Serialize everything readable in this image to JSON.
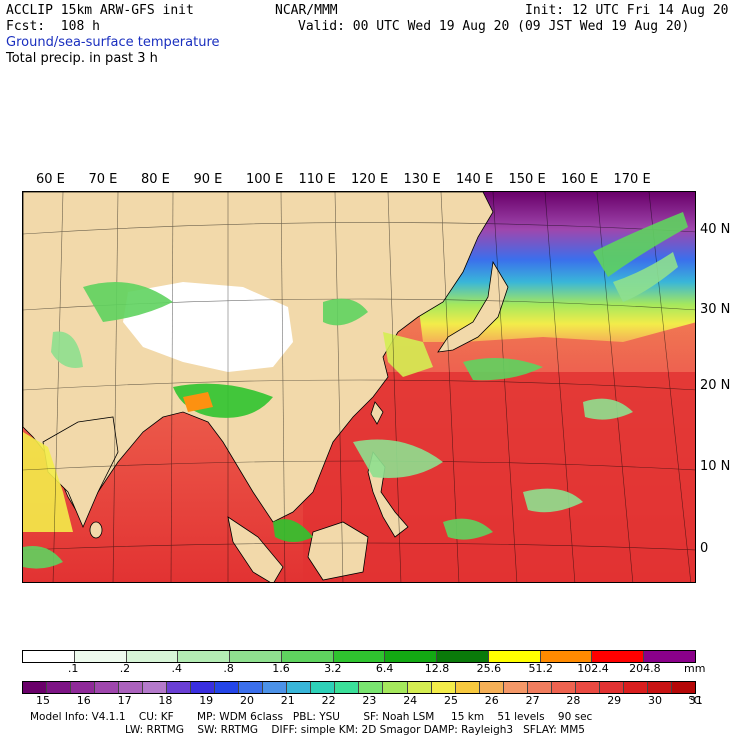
{
  "header": {
    "model_line": "ACCLIP 15km ARW-GFS init",
    "org": "NCAR/MMM",
    "init": "Init: 12 UTC Fri 14 Aug 20",
    "fcst": "Fcst:  108 h",
    "valid": "Valid: 00 UTC Wed 19 Aug 20 (09 JST Wed 19 Aug 20)",
    "field1": "Ground/sea-surface temperature",
    "field2": "Total precip. in past 3 h"
  },
  "map": {
    "lon_labels": [
      "60 E",
      "70 E",
      "80 E",
      "90 E",
      "100 E",
      "110 E",
      "120 E",
      "130 E",
      "140 E",
      "150 E",
      "160 E",
      "170 E"
    ],
    "lat_labels": [
      "40 N",
      "30 N",
      "20 N",
      "10 N",
      "0"
    ]
  },
  "precip_scale": {
    "ticks": [
      ".1",
      ".2",
      ".4",
      ".8",
      "1.6",
      "3.2",
      "6.4",
      "12.8",
      "25.6",
      "51.2",
      "102.4",
      "204.8"
    ],
    "unit": "mm",
    "colors": [
      "#ffffff",
      "#edfaed",
      "#d7f5d7",
      "#b4ecb4",
      "#8fe08f",
      "#5fd35f",
      "#2fc42f",
      "#13a913",
      "#0a7a0a",
      "#ffff00",
      "#ff8a00",
      "#ff0000",
      "#8a008a"
    ]
  },
  "temp_scale": {
    "ticks": [
      "15",
      "16",
      "17",
      "18",
      "19",
      "20",
      "21",
      "22",
      "23",
      "24",
      "25",
      "26",
      "27",
      "28",
      "29",
      "30",
      "31"
    ],
    "unit": "°C",
    "colors": [
      "#6a006a",
      "#7d1485",
      "#8f2a99",
      "#9f47ad",
      "#ab62bd",
      "#b47acb",
      "#6a3fd4",
      "#3a2fe0",
      "#2445e8",
      "#3b6fec",
      "#4c92e8",
      "#39b6d9",
      "#2ed1b8",
      "#3be09a",
      "#79e470",
      "#a5e85d",
      "#d4ed52",
      "#f3ec4a",
      "#f7c93f",
      "#f5b057",
      "#f49868",
      "#f17d5e",
      "#ee6350",
      "#ea4a42",
      "#e23232",
      "#d91e1e",
      "#c81313",
      "#b50808"
    ]
  },
  "footer": {
    "line1": "Model Info: V4.1.1    CU: KF       MP: WDM 6class   PBL: YSU       SF: Noah LSM     15 km    51 levels    90 sec",
    "line2": "LW: RRTMG    SW: RRTMG    DIFF: simple KM: 2D Smagor DAMP: Rayleigh3   SFLAY: MM5"
  }
}
